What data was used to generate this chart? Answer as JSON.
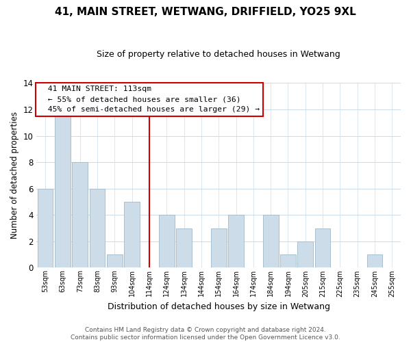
{
  "title": "41, MAIN STREET, WETWANG, DRIFFIELD, YO25 9XL",
  "subtitle": "Size of property relative to detached houses in Wetwang",
  "xlabel": "Distribution of detached houses by size in Wetwang",
  "ylabel": "Number of detached properties",
  "bar_labels": [
    "53sqm",
    "63sqm",
    "73sqm",
    "83sqm",
    "93sqm",
    "104sqm",
    "114sqm",
    "124sqm",
    "134sqm",
    "144sqm",
    "154sqm",
    "164sqm",
    "174sqm",
    "184sqm",
    "194sqm",
    "205sqm",
    "215sqm",
    "225sqm",
    "235sqm",
    "245sqm",
    "255sqm"
  ],
  "bar_values": [
    6,
    12,
    8,
    6,
    1,
    5,
    0,
    4,
    3,
    0,
    3,
    4,
    0,
    4,
    1,
    2,
    3,
    0,
    0,
    1,
    0
  ],
  "bar_color": "#ccdce8",
  "bar_edge_color": "#a8bfd0",
  "highlight_index": 6,
  "highlight_line_color": "#cc0000",
  "ylim": [
    0,
    14
  ],
  "yticks": [
    0,
    2,
    4,
    6,
    8,
    10,
    12,
    14
  ],
  "annotation_title": "41 MAIN STREET: 113sqm",
  "annotation_line1": "← 55% of detached houses are smaller (36)",
  "annotation_line2": "45% of semi-detached houses are larger (29) →",
  "annotation_box_color": "#ffffff",
  "annotation_box_edge": "#cc0000",
  "footer_line1": "Contains HM Land Registry data © Crown copyright and database right 2024.",
  "footer_line2": "Contains public sector information licensed under the Open Government Licence v3.0.",
  "background_color": "#ffffff",
  "grid_color": "#ccdce8"
}
